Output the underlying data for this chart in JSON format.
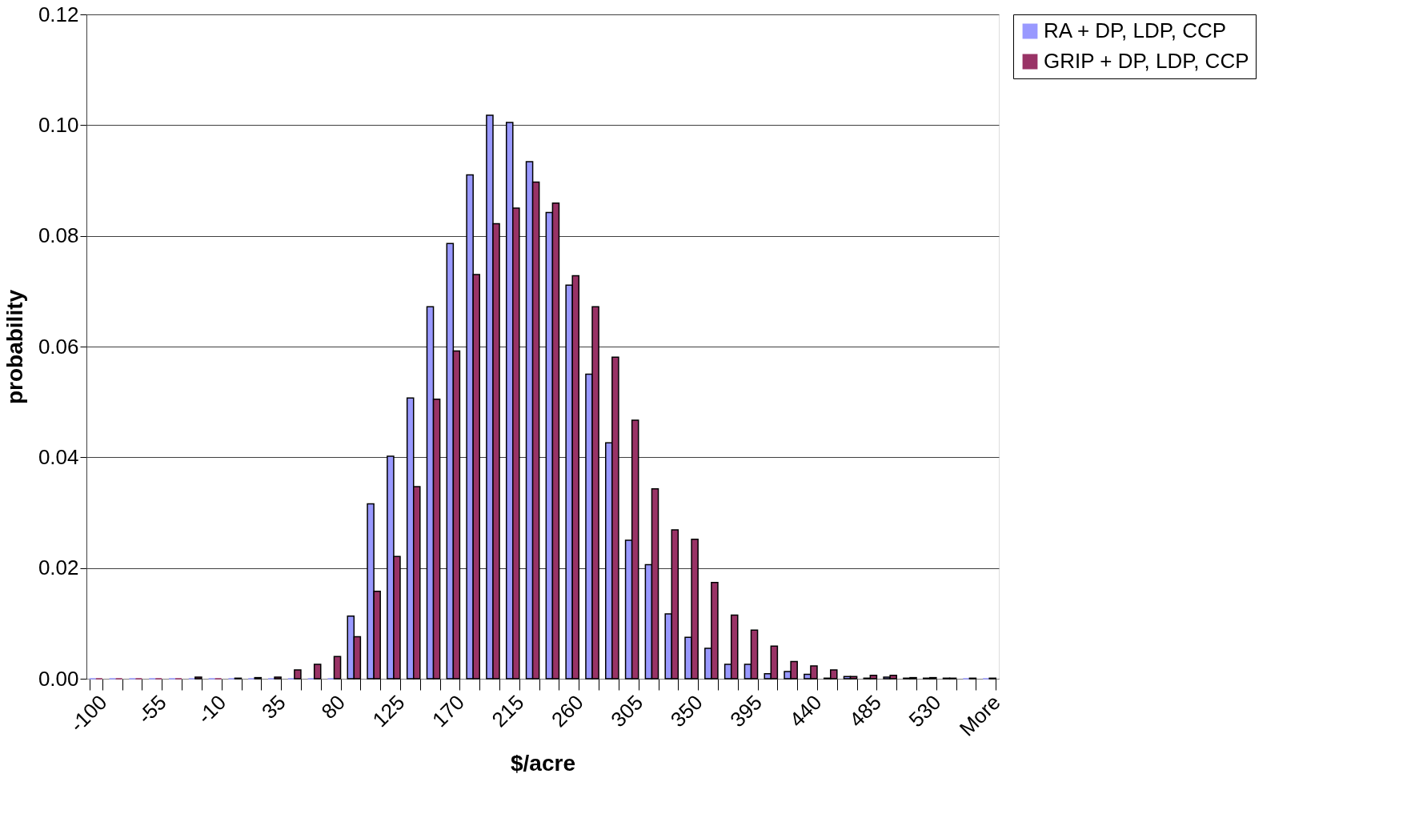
{
  "chart_data": {
    "type": "bar",
    "xlabel": "$/acre",
    "ylabel": "probability",
    "categories": [
      "-100",
      null,
      null,
      "-55",
      null,
      null,
      "-10",
      null,
      null,
      "35",
      null,
      null,
      "80",
      null,
      null,
      "125",
      null,
      null,
      "170",
      null,
      null,
      "215",
      null,
      null,
      "260",
      null,
      null,
      "305",
      null,
      null,
      "350",
      null,
      null,
      "395",
      null,
      null,
      "440",
      null,
      null,
      "485",
      null,
      null,
      "530",
      null,
      null,
      "More"
    ],
    "series": [
      {
        "name": "RA + DP, LDP, CCP",
        "color": "#9999ff",
        "values": [
          0,
          0,
          0,
          0,
          0,
          0,
          0,
          0,
          0,
          0,
          0,
          0,
          0,
          0.0113,
          0.0316,
          0.0402,
          0.0507,
          0.0672,
          0.0786,
          0.091,
          0.1018,
          0.1005,
          0.0934,
          0.0842,
          0.0711,
          0.055,
          0.0426,
          0.025,
          0.0206,
          0.0117,
          0.0075,
          0.0055,
          0.0026,
          0.0026,
          0.0009,
          0.0013,
          0.0008,
          0.0001,
          0.0004,
          0.0001,
          0.0003,
          0.0001,
          0.0001,
          0.0001,
          0,
          0
        ]
      },
      {
        "name": "GRIP + DP, LDP, CCP",
        "color": "#993366",
        "values": [
          0,
          0,
          0,
          0,
          0,
          0.0003,
          0,
          0.0001,
          0.0002,
          0.0003,
          0.0016,
          0.0026,
          0.004,
          0.0076,
          0.0158,
          0.0221,
          0.0347,
          0.0505,
          0.0592,
          0.073,
          0.0822,
          0.085,
          0.0897,
          0.0859,
          0.0728,
          0.0672,
          0.0581,
          0.0467,
          0.0343,
          0.0269,
          0.0252,
          0.0174,
          0.0115,
          0.0088,
          0.0059,
          0.0031,
          0.0023,
          0.0016,
          0.0004,
          0.0006,
          0.0006,
          0.0002,
          0.0002,
          0.0001,
          0.0001,
          0.0001
        ]
      }
    ],
    "ylim": [
      0,
      0.12
    ],
    "yticks": [
      {
        "value": 0,
        "label": "0.00"
      },
      {
        "value": 0.02,
        "label": "0.02"
      },
      {
        "value": 0.04,
        "label": "0.04"
      },
      {
        "value": 0.06,
        "label": "0.06"
      },
      {
        "value": 0.08,
        "label": "0.08"
      },
      {
        "value": 0.1,
        "label": "0.10"
      },
      {
        "value": 0.12,
        "label": "0.12"
      }
    ],
    "grid": "y",
    "legend": "right"
  }
}
